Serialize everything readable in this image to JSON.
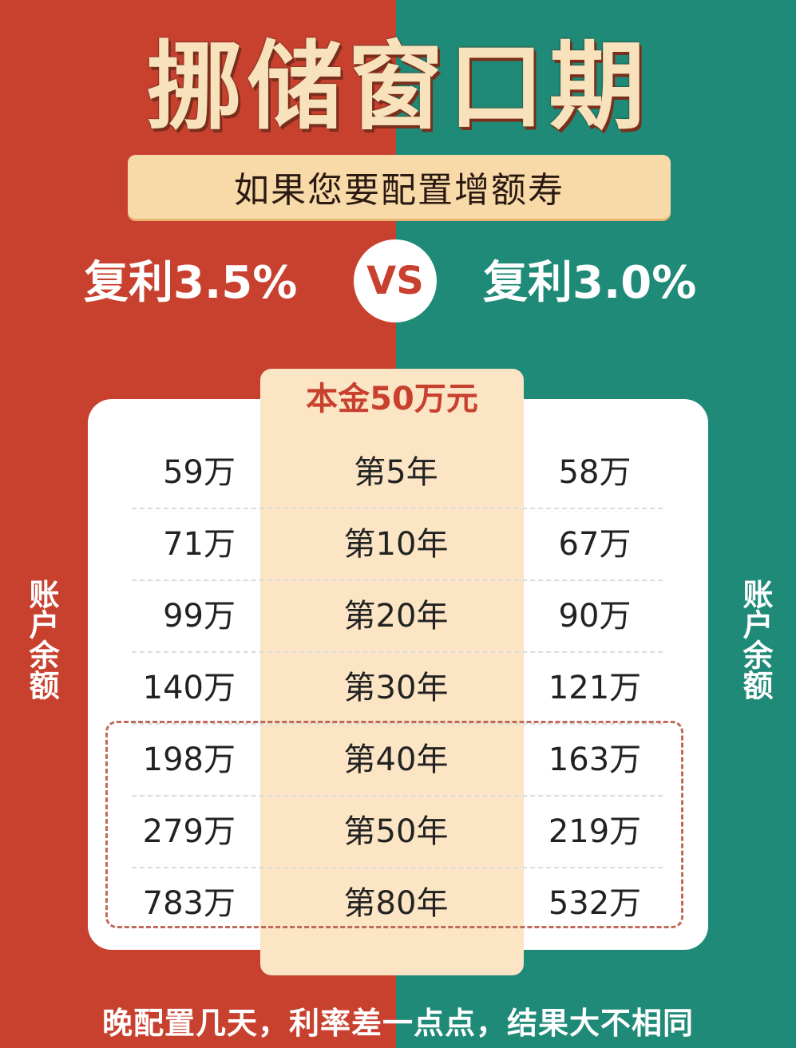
{
  "title": "挪储窗口期",
  "subtitle": "如果您要配置增额寿",
  "rate_left": "复利3.5%",
  "rate_right": "复利3.0%",
  "vs_label": "VS",
  "table": {
    "header": "本金50万元",
    "side_label_left": "账户余额",
    "side_label_right": "账户余额",
    "rows": [
      {
        "left": "59万",
        "year": "第5年",
        "right": "58万"
      },
      {
        "left": "71万",
        "year": "第10年",
        "right": "67万"
      },
      {
        "left": "99万",
        "year": "第20年",
        "right": "90万"
      },
      {
        "left": "140万",
        "year": "第30年",
        "right": "121万"
      },
      {
        "left": "198万",
        "year": "第40年",
        "right": "163万"
      },
      {
        "left": "279万",
        "year": "第50年",
        "right": "219万"
      },
      {
        "left": "783万",
        "year": "第80年",
        "right": "532万"
      }
    ]
  },
  "footer": "晚配置几天，利率差一点点，结果大不相同",
  "colors": {
    "left_bg": "#c8412f",
    "right_bg": "#1f8a77",
    "header": "#c8412f",
    "subtitle_bg": "#f8d9a8"
  }
}
